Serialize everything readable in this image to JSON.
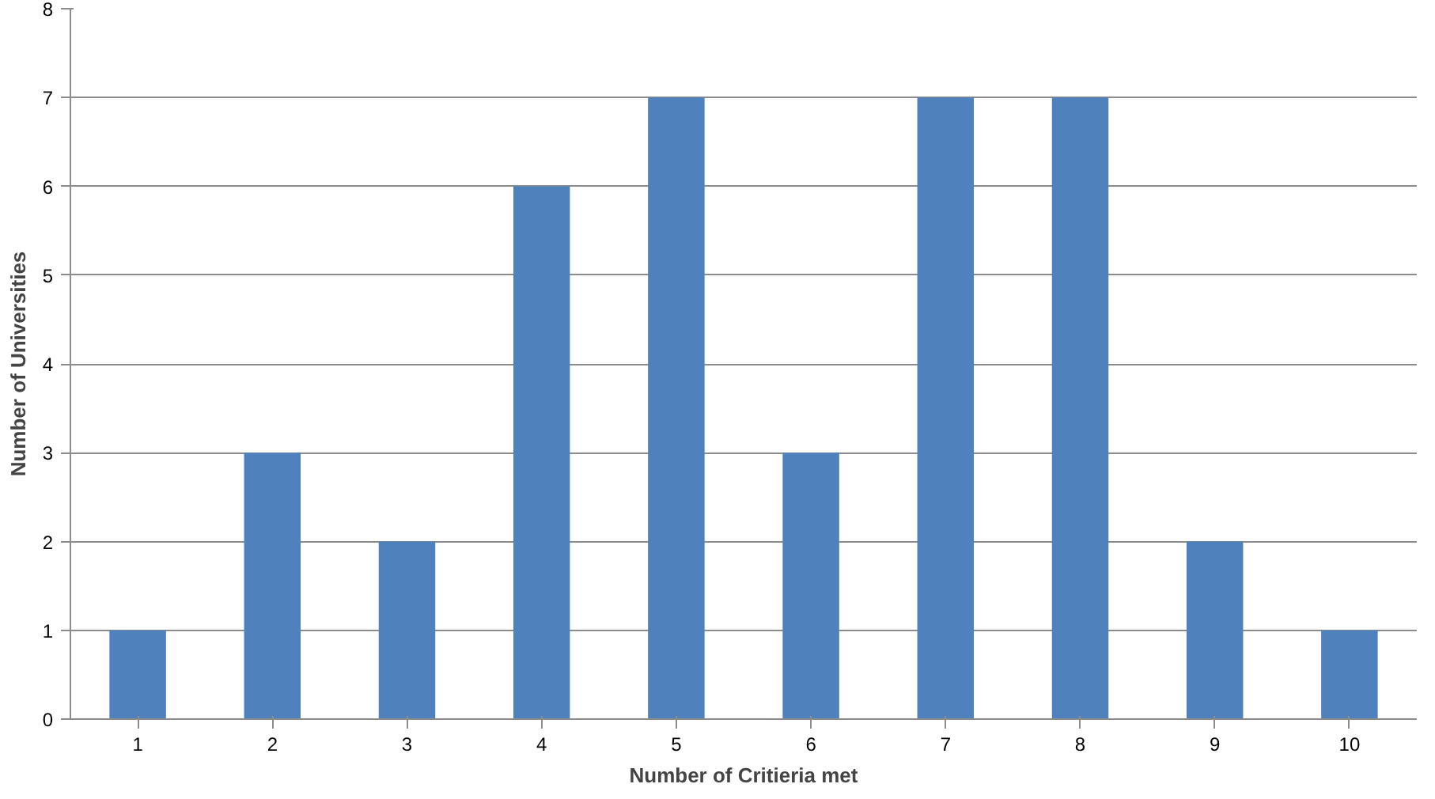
{
  "chart_data": {
    "type": "bar",
    "xlabel": "Number of Critieria met",
    "ylabel": "Number of Universities",
    "categories": [
      "1",
      "2",
      "3",
      "4",
      "5",
      "6",
      "7",
      "8",
      "9",
      "10"
    ],
    "values": [
      1,
      3,
      2,
      6,
      7,
      3,
      7,
      7,
      2,
      1
    ],
    "color": "#4f81bd",
    "ylim": [
      0,
      8
    ],
    "yticks": [
      0,
      1,
      2,
      3,
      4,
      5,
      6,
      7,
      8
    ],
    "grid": "y"
  }
}
